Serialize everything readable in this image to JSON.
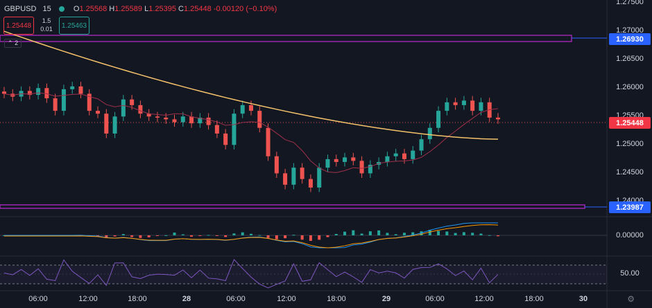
{
  "header": {
    "symbol": "GBPUSD",
    "interval": "15",
    "open_label": "O",
    "open": "1.25568",
    "high_label": "H",
    "high": "1.25589",
    "low_label": "L",
    "low": "1.25395",
    "close_label": "C",
    "close": "1.25448",
    "change": "-0.00120",
    "change_pct": "(−0.10%)",
    "status_color": "#26a69a"
  },
  "quote": {
    "sell": "1.25448",
    "spread_top": "1.5",
    "spread_bottom": "0.01",
    "buy": "1.25463"
  },
  "indicators_toggle": {
    "count": "2"
  },
  "price_axis": {
    "labels": [
      "1.27500",
      "1.27000",
      "1.26500",
      "1.26000",
      "1.25500",
      "1.25000",
      "1.24500",
      "1.24000"
    ],
    "macd_label": "0.00000",
    "rsi_label": "50.00"
  },
  "price_tags": {
    "upper_level": "1.26930",
    "current": "1.25448",
    "lower_level": "1.23987"
  },
  "time_axis": [
    "06:00",
    "12:00",
    "18:00",
    "28",
    "06:00",
    "12:00",
    "18:00",
    "29",
    "06:00",
    "12:00",
    "18:00",
    "30"
  ],
  "colors": {
    "background": "#131722",
    "up": "#26a69a",
    "down": "#ef5350",
    "ma_slow": "#f5c26b",
    "ma_fast": "#a0304a",
    "level": "#9c27b0",
    "macd": "#2196f3",
    "signal": "#ff9800",
    "rsi": "#7e57c2"
  },
  "chart_data": {
    "type": "line",
    "series": [
      {
        "values": [
          1.259,
          1.2585,
          1.2595,
          1.2588,
          1.26,
          1.2582,
          1.256,
          1.2598,
          1.2603,
          1.259,
          1.256,
          1.2555,
          1.252,
          1.255,
          1.258,
          1.257,
          1.2555,
          1.255,
          1.2548,
          1.2545,
          1.254,
          1.255,
          1.2538,
          1.2548,
          1.2535,
          1.252,
          1.25,
          1.2555,
          1.257,
          1.256,
          1.253,
          1.248,
          1.245,
          1.243,
          1.246,
          1.244,
          1.2425,
          1.246,
          1.2475,
          1.247,
          1.2478,
          1.2472,
          1.245,
          1.2465,
          1.247,
          1.248,
          1.2485,
          1.2475,
          1.249,
          1.251,
          1.253,
          1.256,
          1.2575,
          1.257,
          1.2578,
          1.256,
          1.2575,
          1.2548,
          1.2545
        ]
      }
    ],
    "ylim": [
      1.2375,
      1.2755
    ]
  }
}
